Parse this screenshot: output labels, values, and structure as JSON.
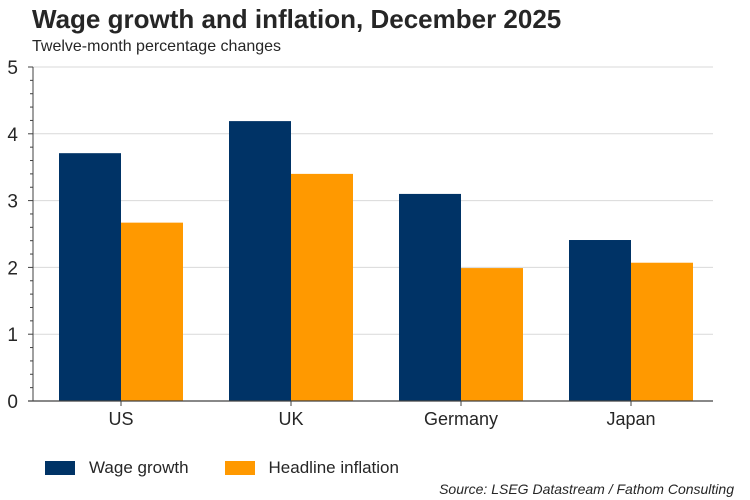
{
  "chart_data": {
    "type": "bar",
    "title": "Wage growth and inflation, December 2025",
    "subtitle": "Twelve-month percentage changes",
    "xlabel": "",
    "ylabel": "",
    "categories": [
      "US",
      "UK",
      "Germany",
      "Japan"
    ],
    "series": [
      {
        "name": "Wage growth",
        "color": "#003366",
        "values": [
          3.71,
          4.19,
          3.1,
          2.41
        ]
      },
      {
        "name": "Headline inflation",
        "color": "#FF9900",
        "values": [
          2.67,
          3.4,
          1.99,
          2.07
        ]
      }
    ],
    "ylim": [
      0,
      5
    ],
    "yticks": [
      "0",
      "1",
      "2",
      "3",
      "4",
      "5"
    ],
    "minor_ticks_per_major": 5,
    "grid": true,
    "legend": "bottom-left",
    "source": "Source: LSEG Datastream / Fathom Consulting"
  }
}
